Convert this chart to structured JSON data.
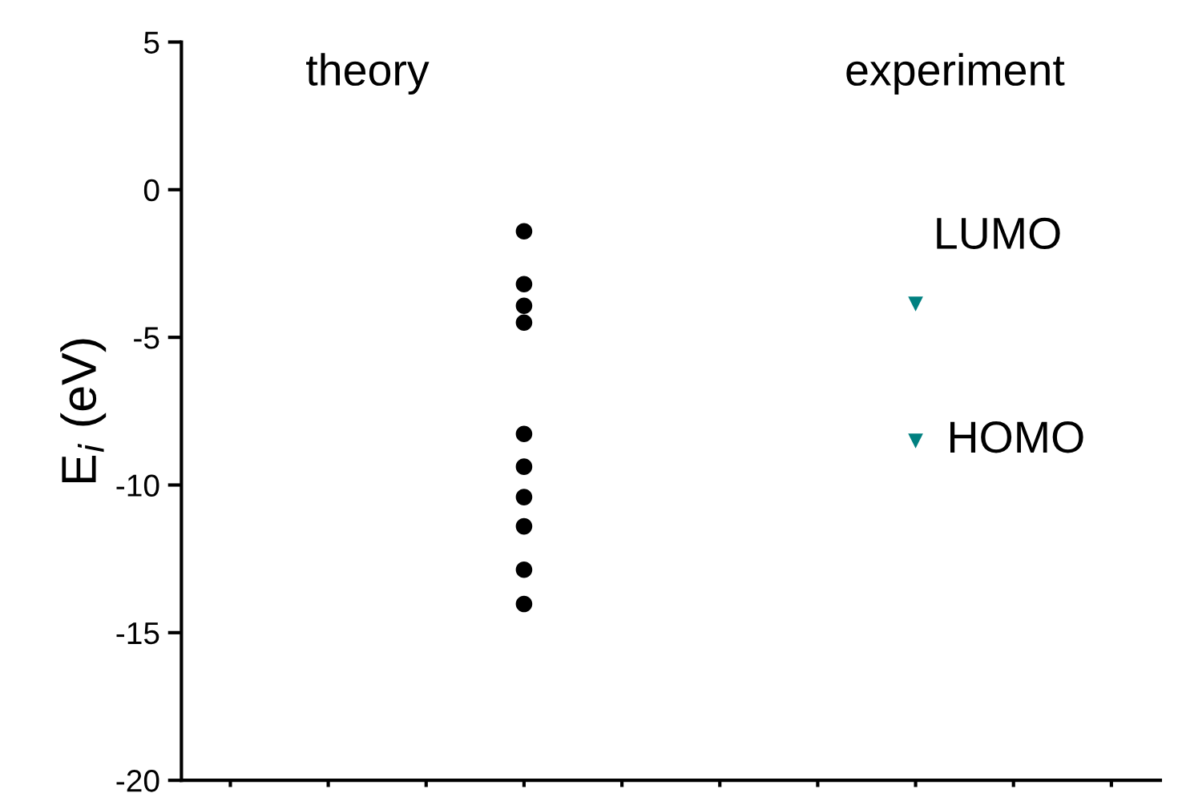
{
  "chart_data": {
    "type": "scatter",
    "ylabel": "E$_{i}$ (eV)",
    "categories": [
      null,
      null,
      null,
      null,
      null,
      null,
      null,
      null,
      null,
      null
    ],
    "series": [
      {
        "color": "#000000",
        "marker": "circle",
        "values": [
          null,
          null,
          null,
          -1.41,
          null,
          null,
          null,
          null,
          null,
          null
        ]
      },
      {
        "color": "#000000",
        "marker": "circle",
        "values": [
          null,
          null,
          null,
          -3.2,
          null,
          null,
          null,
          null,
          null,
          null
        ]
      },
      {
        "color": "#000000",
        "marker": "circle",
        "values": [
          null,
          null,
          null,
          -3.93,
          null,
          null,
          null,
          null,
          null,
          null
        ]
      },
      {
        "color": "#000000",
        "marker": "circle",
        "values": [
          null,
          null,
          null,
          -4.5,
          null,
          null,
          null,
          null,
          null,
          null
        ]
      },
      {
        "color": "#000000",
        "marker": "circle",
        "values": [
          null,
          null,
          null,
          -8.27,
          null,
          null,
          null,
          null,
          null,
          null
        ]
      },
      {
        "color": "#000000",
        "marker": "circle",
        "values": [
          null,
          null,
          null,
          -9.38,
          null,
          null,
          null,
          null,
          null,
          null
        ]
      },
      {
        "color": "#000000",
        "marker": "circle",
        "values": [
          null,
          null,
          null,
          -10.41,
          null,
          null,
          null,
          null,
          null,
          null
        ]
      },
      {
        "color": "#000000",
        "marker": "circle",
        "values": [
          null,
          null,
          null,
          -11.4,
          null,
          null,
          null,
          null,
          null,
          null
        ]
      },
      {
        "color": "#000000",
        "marker": "circle",
        "values": [
          null,
          null,
          null,
          -12.87,
          null,
          null,
          null,
          null,
          null,
          null
        ]
      },
      {
        "color": "#000000",
        "marker": "circle",
        "values": [
          null,
          null,
          null,
          -14.03,
          null,
          null,
          null,
          null,
          null,
          null
        ]
      },
      {
        "color": "#008080",
        "marker": "triangle",
        "values": [
          null,
          null,
          null,
          null,
          null,
          null,
          null,
          -3.87,
          null,
          null
        ]
      },
      {
        "color": "#008080",
        "marker": "triangle",
        "values": [
          null,
          null,
          null,
          null,
          null,
          null,
          null,
          -8.51,
          null,
          null
        ]
      }
    ],
    "ylim": [
      -20,
      5
    ],
    "yticks": [
      {
        "value": -20,
        "label": "-20"
      },
      {
        "value": -15,
        "label": "-15"
      },
      {
        "value": -10,
        "label": "-10"
      },
      {
        "value": -5,
        "label": "-5"
      },
      {
        "value": 0,
        "label": "0"
      },
      {
        "value": 5,
        "label": "5"
      }
    ],
    "annotations": [
      "theory",
      "experiment",
      "LUMO",
      "HOMO"
    ]
  }
}
